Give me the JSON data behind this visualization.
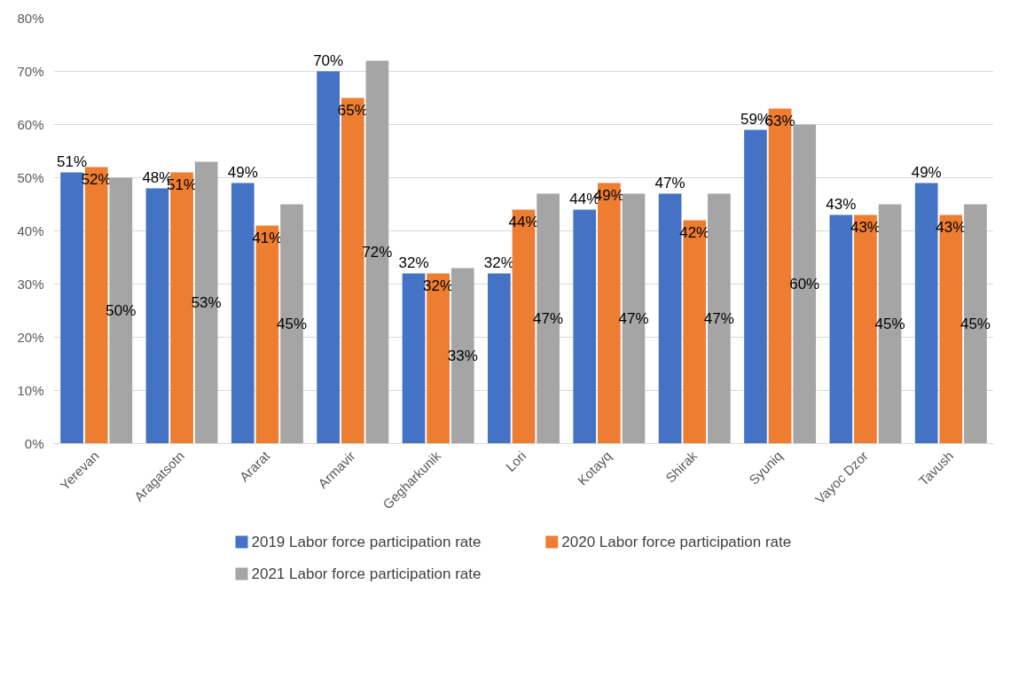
{
  "chart_data": {
    "type": "bar",
    "categories": [
      "Yerevan",
      "Aragatsotn",
      "Ararat",
      "Armavir",
      "Gegharkunik",
      "Lori",
      "Kotayq",
      "Shirak",
      "Syuniq",
      "Vayoc Dzor",
      "Tavush"
    ],
    "series": [
      {
        "name": "2019 Labor force participation rate",
        "color": "#4472c4",
        "values": [
          51,
          48,
          49,
          70,
          32,
          32,
          44,
          47,
          59,
          43,
          49
        ],
        "value_labels": [
          "51%",
          "48%",
          "49%",
          "70%",
          "32%",
          "32%",
          "44%",
          "47%",
          "59%",
          "43%",
          "49%"
        ]
      },
      {
        "name": "2020 Labor force participation rate",
        "color": "#ed7d31",
        "values": [
          52,
          51,
          41,
          65,
          32,
          44,
          49,
          42,
          63,
          43,
          43
        ],
        "value_labels": [
          "52%",
          "51%",
          "41%",
          "65%",
          "32%",
          "44%",
          "49%",
          "42%",
          "63%",
          "43%",
          "43%"
        ]
      },
      {
        "name": "2021 Labor force participation rate",
        "color": "#a5a5a5",
        "values": [
          50,
          53,
          45,
          72,
          33,
          47,
          47,
          47,
          60,
          45,
          45
        ],
        "value_labels": [
          "50%",
          "53%",
          "45%",
          "72%",
          "33%",
          "47%",
          "47%",
          "47%",
          "60%",
          "45%",
          "45%"
        ]
      }
    ],
    "ylim": [
      0,
      80
    ],
    "yticks": [
      {
        "value": 0,
        "label": "0%"
      },
      {
        "value": 10,
        "label": "10%"
      },
      {
        "value": 20,
        "label": "20%"
      },
      {
        "value": 30,
        "label": "30%"
      },
      {
        "value": 40,
        "label": "40%"
      },
      {
        "value": 50,
        "label": "50%"
      },
      {
        "value": 60,
        "label": "60%"
      },
      {
        "value": 70,
        "label": "70%"
      },
      {
        "value": 80,
        "label": "80%"
      }
    ],
    "grid": "y",
    "legend": "bottom"
  }
}
